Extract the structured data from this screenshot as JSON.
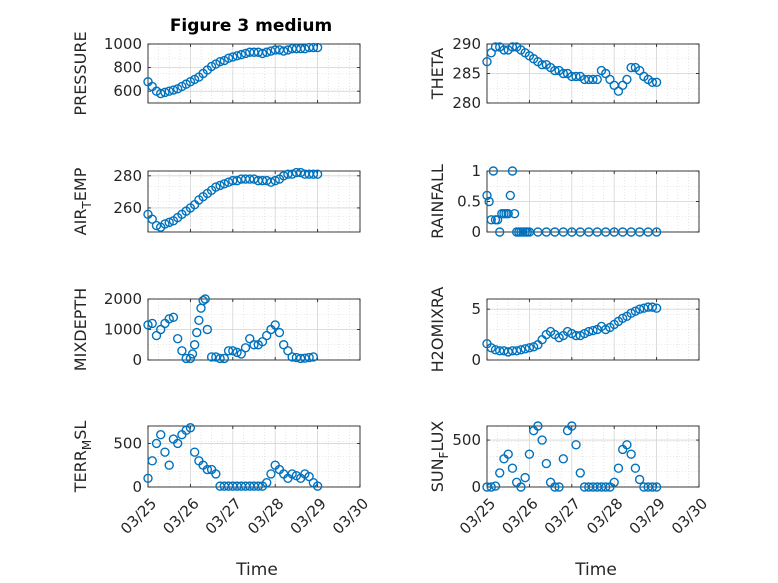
{
  "figure": {
    "title": "Figure 3 medium"
  },
  "xaxis": {
    "label": "Time",
    "ticks": [
      "03/25",
      "03/26",
      "03/27",
      "03/28",
      "03/29",
      "03/30"
    ]
  },
  "colors": {
    "marker": "#0072BD",
    "grid": "#d4d4d4",
    "axis": "#262626"
  },
  "chart_data": [
    {
      "type": "scatter",
      "ylabel": "PRESSURE",
      "ylabel_sub": "",
      "ylim": [
        500,
        1000
      ],
      "yticks": [
        "600",
        "800",
        "1000"
      ],
      "ytick_values": [
        600,
        800,
        1000
      ],
      "x": [
        0.0,
        0.1,
        0.2,
        0.3,
        0.4,
        0.5,
        0.6,
        0.7,
        0.8,
        0.9,
        1.0,
        1.1,
        1.2,
        1.3,
        1.4,
        1.5,
        1.6,
        1.7,
        1.8,
        1.9,
        2.0,
        2.1,
        2.2,
        2.3,
        2.4,
        2.5,
        2.6,
        2.7,
        2.8,
        2.9,
        3.0,
        3.1,
        3.2,
        3.3,
        3.4,
        3.5,
        3.6,
        3.7,
        3.8,
        3.9,
        4.0
      ],
      "y": [
        680,
        640,
        600,
        580,
        590,
        600,
        610,
        620,
        640,
        660,
        680,
        700,
        720,
        750,
        780,
        810,
        830,
        850,
        860,
        880,
        890,
        900,
        910,
        920,
        930,
        930,
        930,
        920,
        930,
        940,
        950,
        950,
        940,
        950,
        960,
        960,
        960,
        960,
        970,
        970,
        970
      ]
    },
    {
      "type": "scatter",
      "ylabel": "THETA",
      "ylabel_sub": "",
      "ylim": [
        280,
        290
      ],
      "yticks": [
        "280",
        "285",
        "290"
      ],
      "ytick_values": [
        280,
        285,
        290
      ],
      "x": [
        0.0,
        0.1,
        0.2,
        0.3,
        0.4,
        0.5,
        0.6,
        0.7,
        0.8,
        0.9,
        1.0,
        1.1,
        1.2,
        1.3,
        1.4,
        1.5,
        1.6,
        1.7,
        1.8,
        1.9,
        2.0,
        2.1,
        2.2,
        2.3,
        2.4,
        2.5,
        2.6,
        2.7,
        2.8,
        2.9,
        3.0,
        3.1,
        3.2,
        3.3,
        3.4,
        3.5,
        3.6,
        3.7,
        3.8,
        3.9,
        4.0
      ],
      "y": [
        287,
        288.5,
        289.5,
        289.5,
        289,
        289,
        289.5,
        289.5,
        289,
        288.5,
        288,
        287.5,
        287,
        286.5,
        286.5,
        286,
        285.5,
        285.5,
        285,
        285,
        284.5,
        284.5,
        284.5,
        284,
        284,
        284,
        284,
        285.5,
        285,
        284,
        283,
        282,
        283,
        284,
        286,
        286,
        285.5,
        284.5,
        284,
        283.5,
        283.5
      ]
    },
    {
      "type": "scatter",
      "ylabel": "AIR",
      "ylabel_sub": "T",
      "ylabel_after": "EMP",
      "ylim": [
        245,
        283
      ],
      "yticks": [
        "260",
        "280"
      ],
      "ytick_values": [
        260,
        280
      ],
      "x": [
        0.0,
        0.1,
        0.2,
        0.3,
        0.4,
        0.5,
        0.6,
        0.7,
        0.8,
        0.9,
        1.0,
        1.1,
        1.2,
        1.3,
        1.4,
        1.5,
        1.6,
        1.7,
        1.8,
        1.9,
        2.0,
        2.1,
        2.2,
        2.3,
        2.4,
        2.5,
        2.6,
        2.7,
        2.8,
        2.9,
        3.0,
        3.1,
        3.2,
        3.3,
        3.4,
        3.5,
        3.6,
        3.7,
        3.8,
        3.9,
        4.0
      ],
      "y": [
        256,
        253,
        249,
        248,
        250,
        251,
        252,
        254,
        256,
        258,
        260,
        262,
        265,
        267,
        269,
        271,
        273,
        274,
        275,
        276,
        277,
        277,
        278,
        278,
        278,
        278,
        277,
        277,
        277,
        276,
        277,
        278,
        280,
        281,
        281,
        282,
        282,
        281,
        281,
        281,
        281
      ]
    },
    {
      "type": "scatter",
      "ylabel": "RAINFALL",
      "ylabel_sub": "",
      "ylim": [
        0,
        1
      ],
      "yticks": [
        "0",
        "0.5",
        "1"
      ],
      "ytick_values": [
        0,
        0.5,
        1
      ],
      "x": [
        0.0,
        0.05,
        0.1,
        0.15,
        0.2,
        0.25,
        0.3,
        0.35,
        0.4,
        0.45,
        0.5,
        0.55,
        0.6,
        0.65,
        0.7,
        0.75,
        0.8,
        0.85,
        0.9,
        0.95,
        1.0,
        1.2,
        1.4,
        1.6,
        1.8,
        2.0,
        2.2,
        2.4,
        2.6,
        2.8,
        3.0,
        3.2,
        3.4,
        3.6,
        3.8,
        4.0
      ],
      "y": [
        0.6,
        0.5,
        0.2,
        1.0,
        0.2,
        0.2,
        0,
        0.3,
        0.3,
        0.3,
        0.3,
        0.6,
        1.0,
        0.3,
        0,
        0,
        0,
        0,
        0,
        0,
        0,
        0,
        0,
        0,
        0,
        0,
        0,
        0,
        0,
        0,
        0,
        0,
        0,
        0,
        0,
        0
      ]
    },
    {
      "type": "scatter",
      "ylabel": "MIXDEPTH",
      "ylabel_sub": "",
      "ylim": [
        0,
        2000
      ],
      "yticks": [
        "0",
        "1000",
        "2000"
      ],
      "ytick_values": [
        0,
        1000,
        2000
      ],
      "x": [
        0.0,
        0.1,
        0.2,
        0.3,
        0.4,
        0.5,
        0.6,
        0.7,
        0.8,
        0.9,
        1.0,
        1.05,
        1.1,
        1.15,
        1.2,
        1.25,
        1.3,
        1.35,
        1.4,
        1.5,
        1.6,
        1.7,
        1.8,
        1.9,
        2.0,
        2.1,
        2.2,
        2.3,
        2.4,
        2.5,
        2.6,
        2.7,
        2.8,
        2.9,
        3.0,
        3.1,
        3.2,
        3.3,
        3.4,
        3.5,
        3.6,
        3.7,
        3.8,
        3.9
      ],
      "y": [
        1150,
        1200,
        800,
        1000,
        1200,
        1350,
        1400,
        700,
        300,
        50,
        50,
        200,
        500,
        900,
        1300,
        1700,
        1950,
        2000,
        1000,
        100,
        100,
        50,
        50,
        300,
        300,
        250,
        200,
        400,
        700,
        500,
        500,
        600,
        800,
        1000,
        1150,
        900,
        500,
        300,
        100,
        80,
        50,
        60,
        80,
        100
      ]
    },
    {
      "type": "scatter",
      "ylabel": "H2OMIXRA",
      "ylabel_sub": "",
      "ylim": [
        0,
        6
      ],
      "yticks": [
        "0",
        "5"
      ],
      "ytick_values": [
        0,
        5
      ],
      "x": [
        0.0,
        0.1,
        0.2,
        0.3,
        0.4,
        0.5,
        0.6,
        0.7,
        0.8,
        0.9,
        1.0,
        1.1,
        1.2,
        1.3,
        1.4,
        1.5,
        1.6,
        1.7,
        1.8,
        1.9,
        2.0,
        2.1,
        2.2,
        2.3,
        2.4,
        2.5,
        2.6,
        2.7,
        2.8,
        2.9,
        3.0,
        3.1,
        3.2,
        3.3,
        3.4,
        3.5,
        3.6,
        3.7,
        3.8,
        3.9,
        4.0
      ],
      "y": [
        1.6,
        1.2,
        1.0,
        0.9,
        0.9,
        0.8,
        0.9,
        0.9,
        1.0,
        1.1,
        1.2,
        1.3,
        1.5,
        2.0,
        2.5,
        2.8,
        2.5,
        2.2,
        2.4,
        2.8,
        2.6,
        2.4,
        2.4,
        2.6,
        2.8,
        2.9,
        3.0,
        3.3,
        3.0,
        3.2,
        3.5,
        3.8,
        4.1,
        4.3,
        4.6,
        4.8,
        5.0,
        5.1,
        5.2,
        5.2,
        5.1
      ]
    },
    {
      "type": "scatter",
      "ylabel": "TERR",
      "ylabel_sub": "M",
      "ylabel_after": "SL",
      "ylim": [
        0,
        700
      ],
      "yticks": [
        "0",
        "500"
      ],
      "ytick_values": [
        0,
        500
      ],
      "x": [
        0.0,
        0.1,
        0.2,
        0.3,
        0.4,
        0.5,
        0.6,
        0.7,
        0.8,
        0.9,
        1.0,
        1.1,
        1.2,
        1.3,
        1.4,
        1.5,
        1.6,
        1.7,
        1.8,
        1.9,
        2.0,
        2.1,
        2.2,
        2.3,
        2.4,
        2.5,
        2.6,
        2.7,
        2.8,
        2.9,
        3.0,
        3.1,
        3.2,
        3.3,
        3.4,
        3.5,
        3.6,
        3.7,
        3.8,
        3.9,
        4.0
      ],
      "y": [
        100,
        300,
        500,
        600,
        400,
        250,
        550,
        500,
        600,
        650,
        680,
        400,
        300,
        250,
        200,
        200,
        150,
        10,
        10,
        10,
        10,
        10,
        10,
        10,
        10,
        10,
        10,
        10,
        50,
        150,
        250,
        200,
        150,
        100,
        150,
        130,
        100,
        150,
        120,
        50,
        10
      ]
    },
    {
      "type": "scatter",
      "ylabel": "SUN",
      "ylabel_sub": "F",
      "ylabel_after": "LUX",
      "ylim": [
        0,
        650
      ],
      "yticks": [
        "0",
        "500"
      ],
      "ytick_values": [
        0,
        500
      ],
      "x": [
        0.0,
        0.1,
        0.2,
        0.3,
        0.4,
        0.5,
        0.6,
        0.7,
        0.8,
        0.9,
        1.0,
        1.1,
        1.2,
        1.3,
        1.4,
        1.5,
        1.6,
        1.7,
        1.8,
        1.9,
        2.0,
        2.1,
        2.2,
        2.3,
        2.4,
        2.5,
        2.6,
        2.7,
        2.8,
        2.9,
        3.0,
        3.1,
        3.2,
        3.3,
        3.4,
        3.5,
        3.6,
        3.7,
        3.8,
        3.9,
        4.0
      ],
      "y": [
        0,
        0,
        10,
        150,
        300,
        350,
        200,
        50,
        0,
        100,
        350,
        600,
        650,
        500,
        250,
        50,
        0,
        0,
        300,
        600,
        650,
        450,
        150,
        0,
        0,
        0,
        0,
        0,
        0,
        0,
        50,
        200,
        400,
        450,
        350,
        200,
        80,
        0,
        0,
        0,
        0
      ]
    }
  ]
}
